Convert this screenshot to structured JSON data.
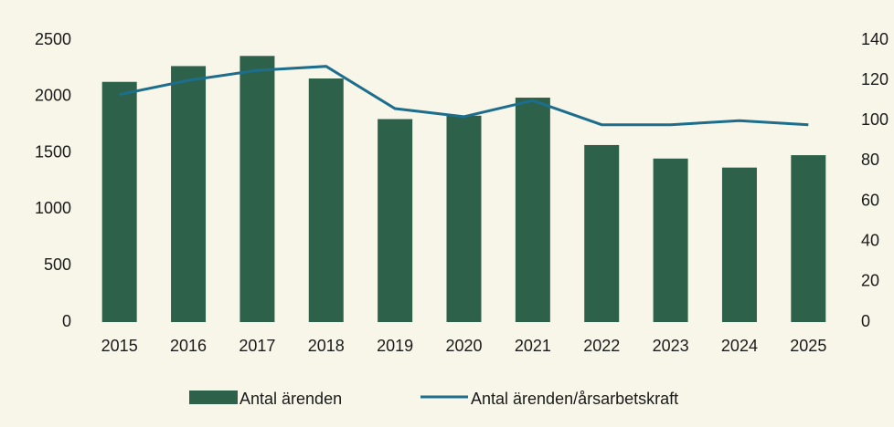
{
  "chart_data": {
    "type": "bar",
    "categories": [
      "2015",
      "2016",
      "2017",
      "2018",
      "2019",
      "2020",
      "2021",
      "2022",
      "2023",
      "2024",
      "2025"
    ],
    "series": [
      {
        "name": "Antal ärenden",
        "type": "bar",
        "color": "#2e6149",
        "values": [
          2130,
          2270,
          2360,
          2160,
          1800,
          1830,
          1990,
          1570,
          1450,
          1370,
          1480
        ]
      },
      {
        "name": "Antal ärenden/årsarbetskraft",
        "type": "line",
        "axis": "y2",
        "color": "#1c6e8c",
        "values": [
          113,
          120,
          125,
          127,
          106,
          102,
          110,
          98,
          98,
          100,
          98
        ]
      }
    ],
    "ylim": [
      0,
      2500
    ],
    "yticks": [
      0,
      500,
      1000,
      1500,
      2000,
      2500
    ],
    "y2lim": [
      0,
      140
    ],
    "y2ticks": [
      0,
      20,
      40,
      60,
      80,
      100,
      120,
      140
    ],
    "grid": false,
    "legend": "bottom"
  }
}
